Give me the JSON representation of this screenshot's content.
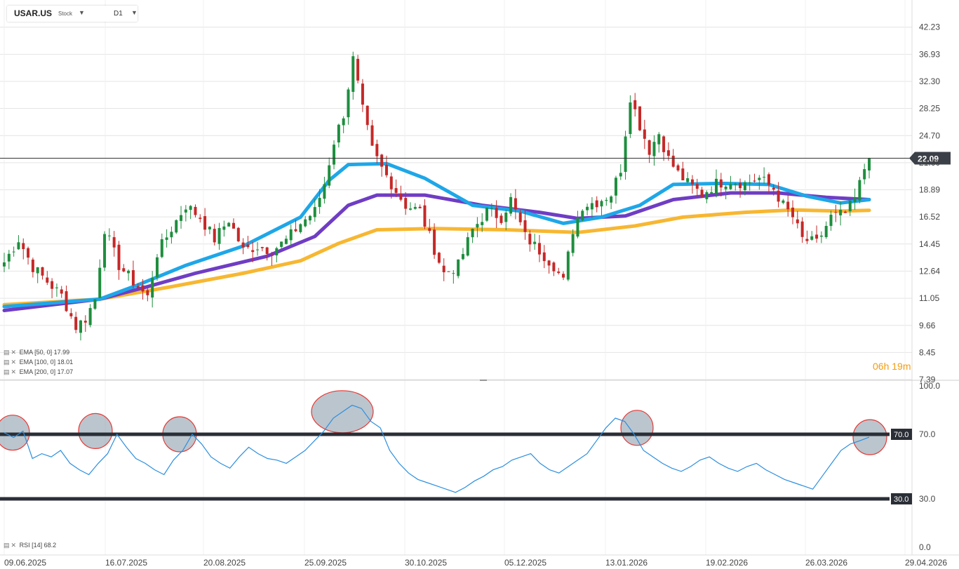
{
  "header": {
    "symbol": "USAR.US",
    "type": "Stock",
    "timeframe": "D1"
  },
  "indicators": {
    "ema50": "EMA [50, 0] 17.99",
    "ema100": "EMA [100, 0] 18.01",
    "ema200": "EMA [200, 0] 17.07",
    "rsi": "RSI [14] 68.2"
  },
  "timer": "06h 19m",
  "colors": {
    "up": "#1e8e3e",
    "down": "#c62828",
    "ema50": "#1ea7e8",
    "ema100": "#6f3dc4",
    "ema200": "#f7b731",
    "rsi": "#2b8fe0",
    "grid": "#e4e4e4",
    "level": "#2a2e36"
  },
  "icons": {
    "legend": "settings-and-close-icons",
    "dropdown": "triangle-down-icon"
  },
  "chart_data": [
    {
      "type": "candlestick",
      "title": "USAR.US",
      "yticks": [
        "42.23",
        "36.93",
        "32.30",
        "28.25",
        "24.70",
        "21.60",
        "18.89",
        "16.52",
        "14.45",
        "12.64",
        "11.05",
        "9.66",
        "8.45",
        "7.39"
      ],
      "ylim": [
        7.39,
        48.3
      ],
      "scale": "log",
      "xticks": [
        "09.06.2025",
        "16.07.2025",
        "20.08.2025",
        "25.09.2025",
        "30.10.2025",
        "05.12.2025",
        "13.01.2026",
        "19.02.2026",
        "26.03.2026",
        "29.04.2026"
      ],
      "last_price": "22.09",
      "close_series_approx": [
        [
          0,
          13.2
        ],
        [
          3,
          14.8
        ],
        [
          6,
          12.9
        ],
        [
          9,
          12.0
        ],
        [
          12,
          11.2
        ],
        [
          15,
          9.6
        ],
        [
          17,
          10.0
        ],
        [
          19,
          11.0
        ],
        [
          21,
          15.6
        ],
        [
          24,
          13.0
        ],
        [
          27,
          12.0
        ],
        [
          30,
          11.1
        ],
        [
          32,
          13.8
        ],
        [
          35,
          15.6
        ],
        [
          38,
          17.5
        ],
        [
          41,
          16.5
        ],
        [
          44,
          14.8
        ],
        [
          47,
          16.3
        ],
        [
          50,
          14.0
        ],
        [
          53,
          14.3
        ],
        [
          56,
          14.0
        ],
        [
          59,
          14.7
        ],
        [
          62,
          16.0
        ],
        [
          65,
          17.0
        ],
        [
          67,
          19.5
        ],
        [
          69,
          24.0
        ],
        [
          71,
          27.5
        ],
        [
          73,
          36.0
        ],
        [
          75,
          28.0
        ],
        [
          77,
          23.0
        ],
        [
          79,
          21.0
        ],
        [
          81,
          19.5
        ],
        [
          84,
          17.5
        ],
        [
          87,
          17.0
        ],
        [
          89,
          15.0
        ],
        [
          92,
          12.5
        ],
        [
          95,
          13.0
        ],
        [
          98,
          15.5
        ],
        [
          101,
          17.0
        ],
        [
          104,
          16.5
        ],
        [
          106,
          18.0
        ],
        [
          109,
          15.0
        ],
        [
          112,
          14.0
        ],
        [
          115,
          13.0
        ],
        [
          117,
          12.0
        ],
        [
          119,
          15.5
        ],
        [
          121,
          17.5
        ],
        [
          124,
          17.8
        ],
        [
          127,
          18.5
        ],
        [
          129,
          21.0
        ],
        [
          131,
          30.0
        ],
        [
          133,
          26.0
        ],
        [
          135,
          23.0
        ],
        [
          137,
          25.0
        ],
        [
          139,
          22.0
        ],
        [
          141,
          20.5
        ],
        [
          143,
          19.5
        ],
        [
          146,
          18.5
        ],
        [
          149,
          19.5
        ],
        [
          152,
          19.8
        ],
        [
          155,
          19.5
        ],
        [
          158,
          20.0
        ],
        [
          161,
          19.0
        ],
        [
          163,
          17.5
        ],
        [
          165,
          16.5
        ],
        [
          167,
          14.8
        ],
        [
          170,
          14.5
        ],
        [
          173,
          16.5
        ],
        [
          176,
          16.8
        ],
        [
          178,
          18.0
        ],
        [
          180,
          21.0
        ],
        [
          181,
          22.09
        ]
      ],
      "ema50_approx": [
        [
          0,
          10.6
        ],
        [
          20,
          11.0
        ],
        [
          28,
          11.8
        ],
        [
          38,
          13.0
        ],
        [
          50,
          14.3
        ],
        [
          62,
          16.5
        ],
        [
          68,
          19.8
        ],
        [
          72,
          21.4
        ],
        [
          80,
          21.5
        ],
        [
          88,
          20.0
        ],
        [
          98,
          17.5
        ],
        [
          108,
          17.0
        ],
        [
          117,
          16.0
        ],
        [
          125,
          16.5
        ],
        [
          133,
          17.5
        ],
        [
          140,
          19.4
        ],
        [
          150,
          19.5
        ],
        [
          160,
          19.4
        ],
        [
          168,
          18.3
        ],
        [
          175,
          17.7
        ],
        [
          181,
          18.0
        ]
      ],
      "ema100_approx": [
        [
          0,
          10.4
        ],
        [
          20,
          11.0
        ],
        [
          30,
          11.7
        ],
        [
          40,
          12.5
        ],
        [
          55,
          13.6
        ],
        [
          65,
          15.0
        ],
        [
          72,
          17.5
        ],
        [
          78,
          18.4
        ],
        [
          88,
          18.4
        ],
        [
          100,
          17.5
        ],
        [
          112,
          16.9
        ],
        [
          120,
          16.4
        ],
        [
          130,
          16.6
        ],
        [
          140,
          18.0
        ],
        [
          152,
          18.6
        ],
        [
          162,
          18.6
        ],
        [
          172,
          18.2
        ],
        [
          181,
          18.0
        ]
      ],
      "ema200_approx": [
        [
          0,
          10.7
        ],
        [
          20,
          11.0
        ],
        [
          35,
          11.7
        ],
        [
          50,
          12.5
        ],
        [
          62,
          13.3
        ],
        [
          70,
          14.5
        ],
        [
          78,
          15.5
        ],
        [
          90,
          15.6
        ],
        [
          105,
          15.5
        ],
        [
          120,
          15.3
        ],
        [
          132,
          15.8
        ],
        [
          142,
          16.5
        ],
        [
          155,
          16.9
        ],
        [
          165,
          17.1
        ],
        [
          175,
          17.0
        ],
        [
          181,
          17.07
        ]
      ]
    },
    {
      "type": "line",
      "title": "RSI [14] 68.2",
      "yticks": [
        "100.0",
        "70.0",
        "30.0",
        "0.0"
      ],
      "ylim": [
        0,
        100
      ],
      "levels": [
        70,
        30
      ],
      "rsi_values_approx": [
        71,
        68,
        72,
        55,
        58,
        56,
        60,
        52,
        48,
        45,
        52,
        58,
        70,
        62,
        55,
        52,
        48,
        45,
        54,
        60,
        70,
        64,
        56,
        52,
        49,
        56,
        62,
        58,
        55,
        54,
        52,
        56,
        60,
        66,
        72,
        80,
        84,
        88,
        86,
        78,
        74,
        60,
        52,
        46,
        42,
        40,
        38,
        36,
        34,
        37,
        41,
        44,
        48,
        50,
        54,
        56,
        58,
        52,
        48,
        46,
        50,
        54,
        58,
        66,
        74,
        80,
        78,
        70,
        60,
        56,
        52,
        49,
        47,
        50,
        54,
        56,
        52,
        49,
        47,
        50,
        52,
        48,
        45,
        42,
        40,
        38,
        36,
        44,
        52,
        60,
        64,
        66,
        68.2
      ],
      "highlights": [
        "overbought zones circled"
      ]
    }
  ]
}
